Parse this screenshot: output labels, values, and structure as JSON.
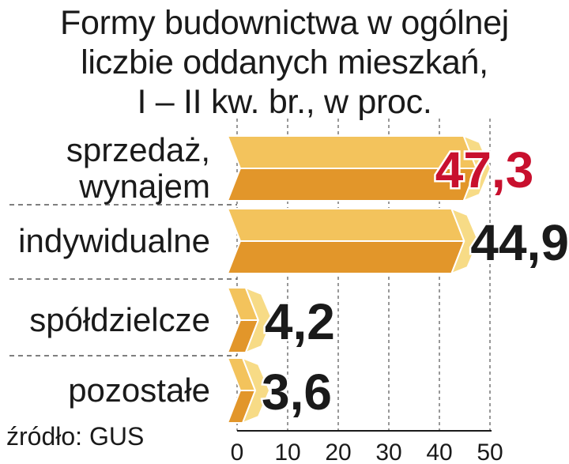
{
  "chart_data": {
    "type": "bar",
    "orientation": "horizontal",
    "title": "Formy budownictwa w ogólnej liczbie oddanych mieszkań, I – II kw. br., w proc.",
    "title_lines": [
      "Formy budownictwa w ogólnej",
      "liczbie oddanych mieszkań,",
      "I – II kw. br., w proc."
    ],
    "categories": [
      [
        "sprzedaż,",
        "wynajem"
      ],
      [
        "indywidualne"
      ],
      [
        "spółdzielcze"
      ],
      [
        "pozostałe"
      ]
    ],
    "values": [
      47.3,
      44.9,
      4.2,
      3.6
    ],
    "value_labels": [
      "47,3",
      "44,9",
      "4,2",
      "3,6"
    ],
    "highlight_index": 0,
    "xlim": [
      0,
      50
    ],
    "x_ticks": [
      0,
      10,
      20,
      30,
      40,
      50
    ],
    "x_tick_labels": [
      "0",
      "10",
      "20",
      "30",
      "40",
      "50"
    ],
    "grid": "vertical dashed",
    "source": "źródło: GUS",
    "colors": {
      "bar_top": "#f3c35c",
      "bar_front": "#e2962a",
      "bar_end": "#f7db86",
      "bar_outline": "#ffffff",
      "highlight_label": "#c8102e",
      "label": "#1a1a1a",
      "grid": "#555555"
    }
  }
}
